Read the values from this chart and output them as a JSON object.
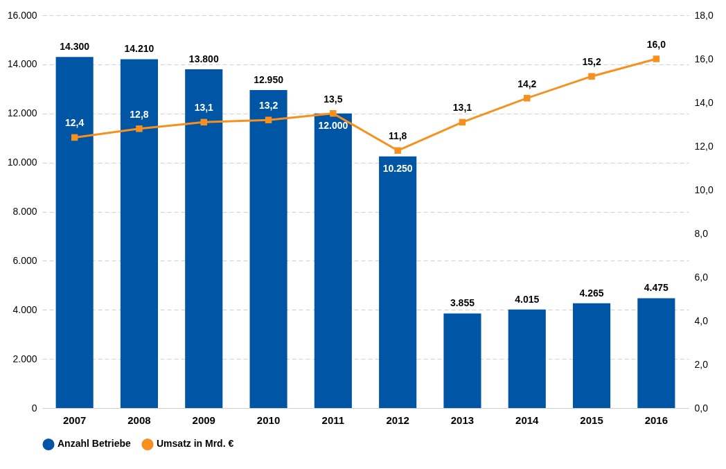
{
  "chart_data": {
    "type": "bar",
    "categories": [
      "2007",
      "2008",
      "2009",
      "2010",
      "2011",
      "2012",
      "2013",
      "2014",
      "2015",
      "2016"
    ],
    "series": [
      {
        "name": "Anzahl Betriebe",
        "color": "#0055a5",
        "values": [
          14300,
          14210,
          13800,
          12950,
          12000,
          10250,
          3855,
          4015,
          4265,
          4475
        ],
        "value_labels": [
          "14.300",
          "14.210",
          "13.800",
          "12.950",
          "12.000",
          "10.250",
          "3.855",
          "4.015",
          "4.265",
          "4.475"
        ]
      },
      {
        "name": "Umsatz in Mrd. €",
        "type": "line",
        "axis": "y2",
        "color": "#f7901e",
        "marker": "square",
        "values": [
          12.4,
          12.8,
          13.1,
          13.2,
          13.5,
          11.8,
          13.1,
          14.2,
          15.2,
          16.0
        ],
        "value_labels": [
          "12,4",
          "12,8",
          "13,1",
          "13,2",
          "13,5",
          "11,8",
          "13,1",
          "14,2",
          "15,2",
          "16,0"
        ]
      }
    ],
    "ylim": [
      0,
      16000
    ],
    "yticks": [
      {
        "value": 0,
        "label": "0"
      },
      {
        "value": 2000,
        "label": "2.000"
      },
      {
        "value": 4000,
        "label": "4.000"
      },
      {
        "value": 6000,
        "label": "6.000"
      },
      {
        "value": 8000,
        "label": "8.000"
      },
      {
        "value": 10000,
        "label": "10.000"
      },
      {
        "value": 12000,
        "label": "12.000"
      },
      {
        "value": 14000,
        "label": "14.000"
      },
      {
        "value": 16000,
        "label": "16.000"
      }
    ],
    "y2lim": [
      0,
      18
    ],
    "y2ticks": [
      {
        "value": 0,
        "label": "0,0"
      },
      {
        "value": 2,
        "label": "2,0"
      },
      {
        "value": 4,
        "label": "4,0"
      },
      {
        "value": 6,
        "label": "6,0"
      },
      {
        "value": 8,
        "label": "8,0"
      },
      {
        "value": 10,
        "label": "10,0"
      },
      {
        "value": 12,
        "label": "12,0"
      },
      {
        "value": 14,
        "label": "14,0"
      },
      {
        "value": 16,
        "label": "16,0"
      },
      {
        "value": 18,
        "label": "18,0"
      }
    ],
    "grid": "y",
    "legend": "bottom"
  }
}
